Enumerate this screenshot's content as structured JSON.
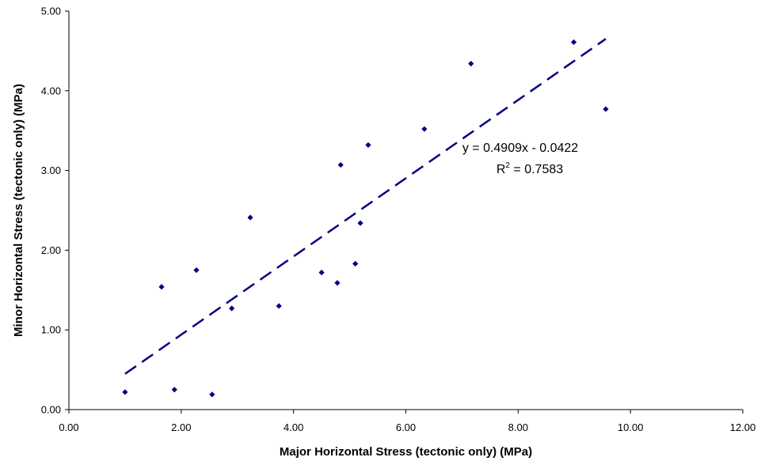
{
  "chart_data": {
    "type": "scatter",
    "title": "",
    "xlabel": "Major Horizontal Stress (tectonic only) (MPa)",
    "ylabel": "Minor Horizontal Stress (tectonic only) (MPa)",
    "xlim": [
      0,
      12
    ],
    "ylim": [
      0,
      5
    ],
    "x_ticks": [
      "0.00",
      "2.00",
      "4.00",
      "6.00",
      "8.00",
      "10.00",
      "12.00"
    ],
    "y_ticks": [
      "0.00",
      "1.00",
      "2.00",
      "3.00",
      "4.00",
      "5.00"
    ],
    "grid": false,
    "marker_color": "#000080",
    "trendline_color": "#000080",
    "series": [
      {
        "points": [
          {
            "x": 1.0,
            "y": 0.22
          },
          {
            "x": 1.65,
            "y": 1.54
          },
          {
            "x": 1.88,
            "y": 0.25
          },
          {
            "x": 2.27,
            "y": 1.75
          },
          {
            "x": 2.55,
            "y": 0.19
          },
          {
            "x": 2.9,
            "y": 1.27
          },
          {
            "x": 3.23,
            "y": 2.41
          },
          {
            "x": 3.74,
            "y": 1.3
          },
          {
            "x": 4.5,
            "y": 1.72
          },
          {
            "x": 4.78,
            "y": 1.59
          },
          {
            "x": 4.84,
            "y": 3.07
          },
          {
            "x": 5.1,
            "y": 1.83
          },
          {
            "x": 5.19,
            "y": 2.34
          },
          {
            "x": 5.33,
            "y": 3.32
          },
          {
            "x": 6.33,
            "y": 3.52
          },
          {
            "x": 7.16,
            "y": 4.34
          },
          {
            "x": 8.99,
            "y": 4.61
          },
          {
            "x": 9.56,
            "y": 3.77
          }
        ]
      }
    ],
    "trendline": {
      "slope": 0.4909,
      "intercept": -0.0422,
      "x_range": [
        1.0,
        9.56
      ],
      "style": "dashed"
    },
    "equation_label": "y = 0.4909x - 0.0422",
    "r2_label_prefix": "R",
    "r2_label_sup": "2",
    "r2_label_value": " = 0.7583"
  }
}
